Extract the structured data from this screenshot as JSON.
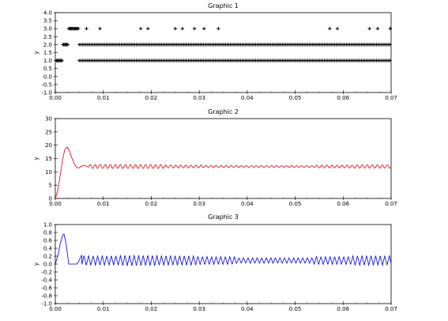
{
  "chart_data": [
    {
      "type": "scatter",
      "title": "Graphic 1",
      "xlabel": "",
      "ylabel": "y",
      "xlim": [
        0,
        0.07
      ],
      "ylim": [
        -1,
        4
      ],
      "x_ticks": [
        0.0,
        0.01,
        0.02,
        0.03,
        0.04,
        0.05,
        0.06,
        0.07
      ],
      "x_tick_labels": [
        "0.00",
        "0.01",
        "0.02",
        "0.03",
        "0.04",
        "0.05",
        "0.06",
        "0.07"
      ],
      "y_ticks": [
        -1.0,
        -0.5,
        0.0,
        0.5,
        1.0,
        1.5,
        2.0,
        2.5,
        3.0,
        3.5,
        4.0
      ],
      "y_tick_labels": [
        "-1.0",
        "-0.5",
        "0.0",
        "0.5",
        "1.0",
        "1.5",
        "2.0",
        "2.5",
        "3.0",
        "3.5",
        "4.0"
      ],
      "grid": false,
      "color": "#000000",
      "marker": "plus",
      "series": [
        {
          "values_description_note": "",
          "points": [
            [
              0.0002,
              1
            ],
            [
              0.0004,
              1
            ],
            [
              0.0006,
              1
            ],
            [
              0.0008,
              1
            ],
            [
              0.001,
              1
            ],
            [
              0.0012,
              1
            ],
            [
              0.0014,
              1
            ],
            [
              0.0016,
              2
            ],
            [
              0.0018,
              2
            ],
            [
              0.002,
              2
            ],
            [
              0.0022,
              2
            ],
            [
              0.0024,
              2
            ],
            [
              0.0026,
              2
            ],
            [
              0.0028,
              3
            ],
            [
              0.003,
              3
            ],
            [
              0.0032,
              3
            ],
            [
              0.0034,
              3
            ],
            [
              0.0036,
              3
            ],
            [
              0.0038,
              3
            ],
            [
              0.004,
              3
            ],
            [
              0.0042,
              3
            ],
            [
              0.0044,
              3
            ],
            [
              0.0046,
              3
            ],
            [
              0.0048,
              3
            ],
            [
              0.0065,
              3
            ],
            [
              0.0093,
              3
            ],
            [
              0.0178,
              3
            ],
            [
              0.0193,
              3
            ],
            [
              0.025,
              3
            ],
            [
              0.0265,
              3
            ],
            [
              0.029,
              3
            ],
            [
              0.031,
              3
            ],
            [
              0.034,
              3
            ],
            [
              0.0572,
              3
            ],
            [
              0.0588,
              3
            ],
            [
              0.0655,
              3
            ],
            [
              0.0672,
              3
            ],
            [
              0.0698,
              3
            ]
          ],
          "band_2_x_range": [
            0.005,
            0.07
          ],
          "band_1_x_range": [
            0.005,
            0.07
          ]
        }
      ]
    },
    {
      "type": "line",
      "title": "Graphic 2",
      "xlabel": "",
      "ylabel": "y",
      "xlim": [
        0,
        0.07
      ],
      "ylim": [
        0,
        30
      ],
      "x_ticks": [
        0.0,
        0.01,
        0.02,
        0.03,
        0.04,
        0.05,
        0.06,
        0.07
      ],
      "x_tick_labels": [
        "0.00",
        "0.01",
        "0.02",
        "0.03",
        "0.04",
        "0.05",
        "0.06",
        "0.07"
      ],
      "y_ticks": [
        0,
        5,
        10,
        15,
        20,
        25,
        30
      ],
      "y_tick_labels": [
        "0",
        "5",
        "10",
        "15",
        "20",
        "25",
        "30"
      ],
      "grid": false,
      "series": [
        {
          "color": "#e00000",
          "x": [
            0.0,
            0.0005,
            0.001,
            0.0015,
            0.002,
            0.0025,
            0.003,
            0.0035,
            0.004,
            0.0045,
            0.005,
            0.0055,
            0.006,
            0.007
          ],
          "y": [
            0.0,
            3.0,
            8.5,
            14.5,
            18.5,
            19.3,
            17.5,
            15.0,
            12.8,
            11.6,
            11.5,
            12.2,
            12.4,
            11.8
          ],
          "steady_value": 12.0,
          "ripple_amplitude": [
            0.7,
            0.7,
            0.5,
            0.4,
            0.3,
            0.3,
            0.5,
            0.6
          ]
        }
      ]
    },
    {
      "type": "line",
      "title": "Graphic 3",
      "xlabel": "",
      "ylabel": "y",
      "xlim": [
        0,
        0.07
      ],
      "ylim": [
        -1,
        1
      ],
      "x_ticks": [
        0.0,
        0.01,
        0.02,
        0.03,
        0.04,
        0.05,
        0.06,
        0.07
      ],
      "x_tick_labels": [
        "0.00",
        "0.01",
        "0.02",
        "0.03",
        "0.04",
        "0.05",
        "0.06",
        "0.07"
      ],
      "y_ticks": [
        -1.0,
        -0.8,
        -0.6,
        -0.4,
        -0.2,
        0.0,
        0.2,
        0.4,
        0.6,
        0.8,
        1.0
      ],
      "y_tick_labels": [
        "-1.0",
        "-0.8",
        "-0.6",
        "-0.4",
        "-0.2",
        "0.0",
        "0.2",
        "0.4",
        "0.6",
        "0.8",
        "1.0"
      ],
      "grid": false,
      "series": [
        {
          "color": "#0000e0",
          "x": [
            0.0,
            0.0005,
            0.001,
            0.0015,
            0.0018,
            0.0022,
            0.0028,
            0.003,
            0.0045,
            0.0048,
            0.0055
          ],
          "y": [
            0.0,
            0.2,
            0.5,
            0.72,
            0.76,
            0.55,
            0.0,
            0.0,
            0.0,
            0.05,
            0.23
          ],
          "steady_center": 0.09,
          "ripple_amplitude": [
            0.12,
            0.13,
            0.12,
            0.1,
            0.07,
            0.07,
            0.1,
            0.12
          ]
        }
      ]
    }
  ]
}
